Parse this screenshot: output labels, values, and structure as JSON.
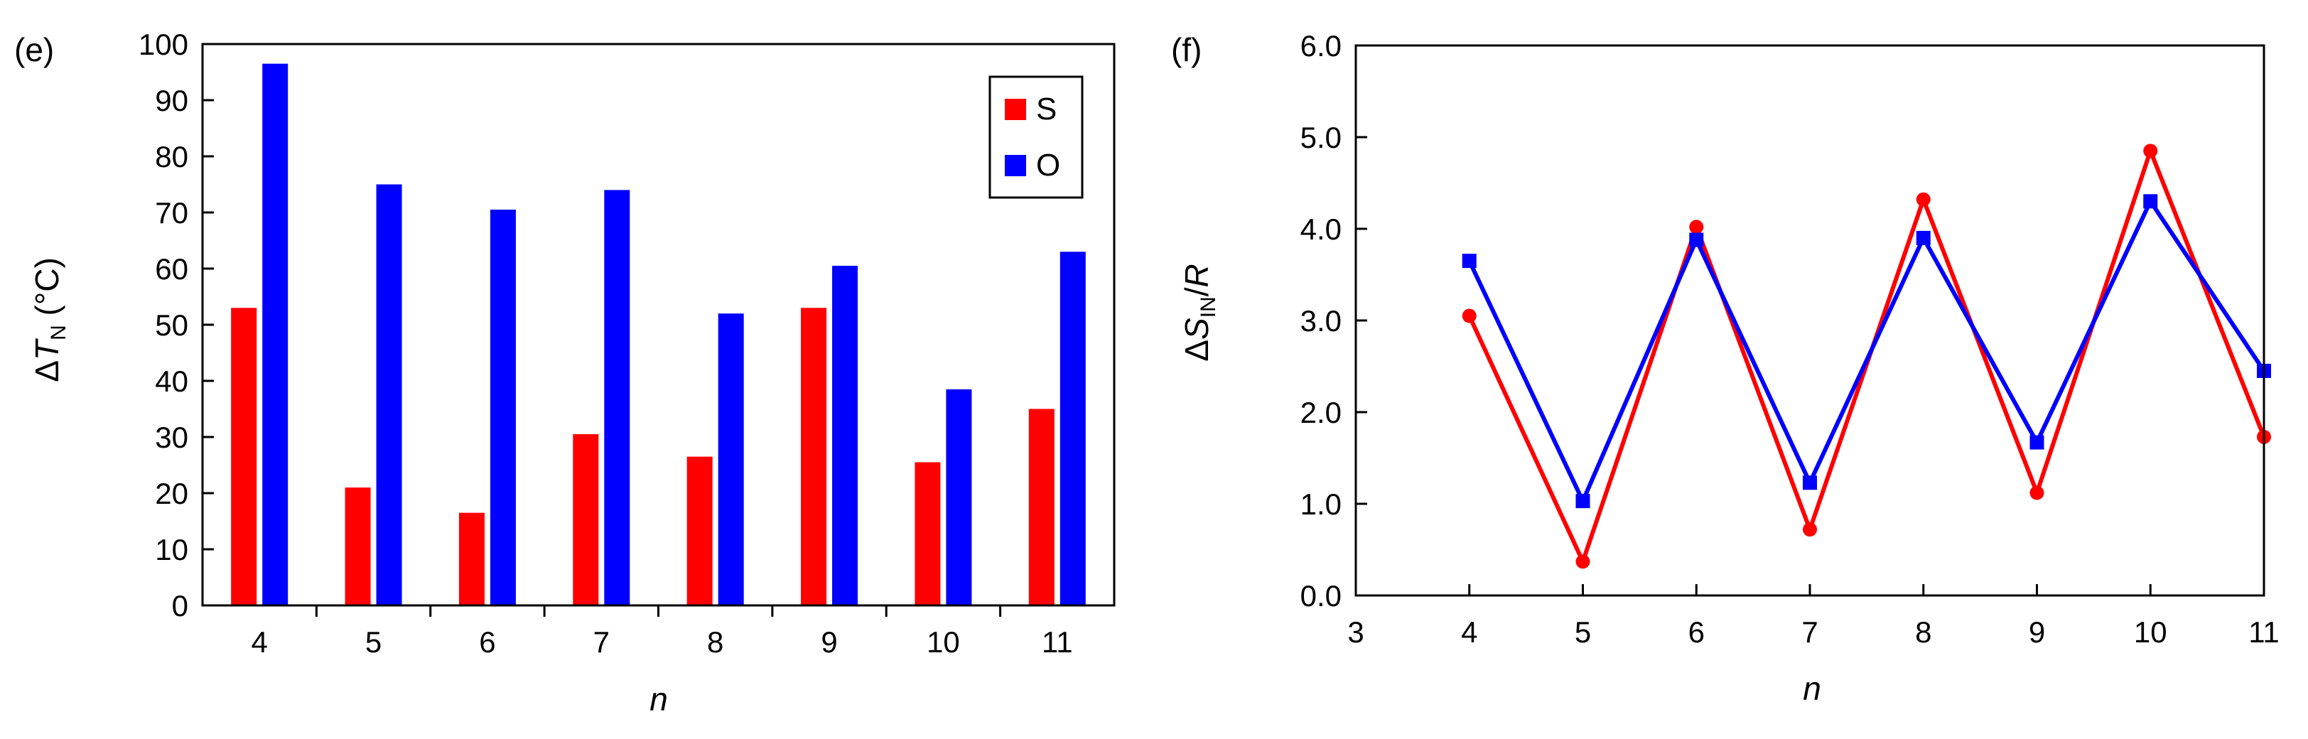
{
  "chart_data": [
    {
      "panel": "(e)",
      "type": "bar",
      "xlabel": "n",
      "ylabel": {
        "delta": "Δ",
        "symbol": "T",
        "sub": "N",
        "unit": " (°C)"
      },
      "categories": [
        "4",
        "5",
        "6",
        "7",
        "8",
        "9",
        "10",
        "11"
      ],
      "ylim": [
        0,
        100
      ],
      "yticks": [
        0,
        10,
        20,
        30,
        40,
        50,
        60,
        70,
        80,
        90,
        100
      ],
      "series": [
        {
          "name": "S",
          "color": "#ff0000",
          "values": [
            53,
            21,
            16.5,
            30.5,
            26.5,
            53,
            25.5,
            35
          ]
        },
        {
          "name": "O",
          "color": "#0000ff",
          "values": [
            96.5,
            75,
            70.5,
            74,
            52,
            60.5,
            38.5,
            63
          ]
        }
      ],
      "legend": "top-right"
    },
    {
      "panel": "(f)",
      "type": "line",
      "xlabel": "n",
      "ylabel": {
        "delta": "Δ",
        "symbol": "S",
        "sub": "IN",
        "over": "/",
        "denom": "R"
      },
      "x": [
        4,
        5,
        6,
        7,
        8,
        9,
        10,
        11
      ],
      "xlim": [
        3,
        11
      ],
      "xticks": [
        3,
        4,
        5,
        6,
        7,
        8,
        9,
        10,
        11
      ],
      "ylim": [
        0,
        6
      ],
      "yticks": [
        "0.0",
        "1.0",
        "2.0",
        "3.0",
        "4.0",
        "5.0",
        "6.0"
      ],
      "series": [
        {
          "name": "S",
          "color": "#ff0000",
          "marker": "circle",
          "values": [
            3.05,
            0.37,
            4.02,
            0.72,
            4.32,
            1.12,
            4.85,
            1.73
          ]
        },
        {
          "name": "O",
          "color": "#0000ff",
          "marker": "square",
          "values": [
            3.65,
            1.03,
            3.88,
            1.23,
            3.9,
            1.67,
            4.3,
            2.45
          ]
        }
      ]
    }
  ]
}
